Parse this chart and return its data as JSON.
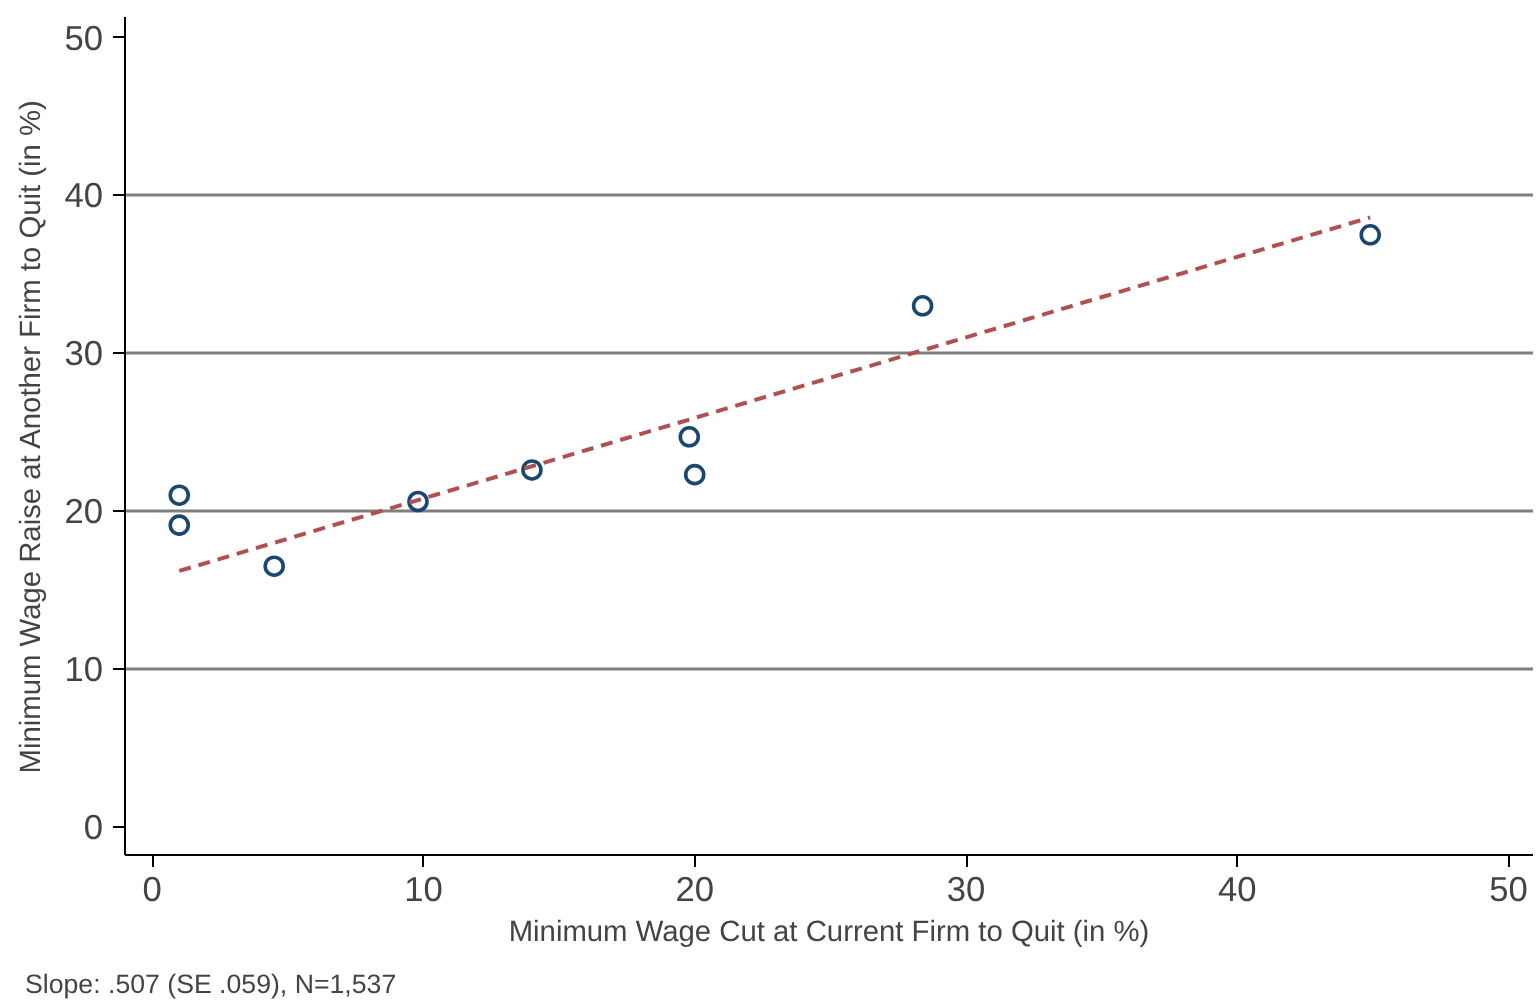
{
  "chart_data": {
    "type": "scatter",
    "xlabel": "Minimum Wage Cut at Current Firm to Quit (in %)",
    "ylabel": "Minimum Wage Raise at Another Firm to Quit (in %)",
    "annotations": [
      "Slope: .507 (SE .059), N=1,537"
    ],
    "xlim": [
      -1,
      50.9
    ],
    "ylim": [
      -1.8,
      51.3
    ],
    "xticks": [
      0,
      10,
      20,
      30,
      40,
      50
    ],
    "yticks": [
      0,
      10,
      20,
      30,
      40,
      50
    ],
    "grid": "y",
    "marker": "circle",
    "series": [
      {
        "color": "#1a476f",
        "x": [
          1.0,
          1.0,
          4.5,
          9.8,
          14.0,
          19.8,
          20.0,
          28.4,
          44.9
        ],
        "values": [
          21.0,
          19.1,
          16.5,
          20.6,
          22.6,
          24.7,
          22.3,
          33.0,
          37.5
        ]
      },
      {
        "type": "line",
        "color": "#b05050",
        "line_style": "dashed",
        "marker": "none",
        "x": [
          1.0,
          44.9
        ],
        "values": [
          16.2,
          38.6
        ]
      }
    ]
  }
}
